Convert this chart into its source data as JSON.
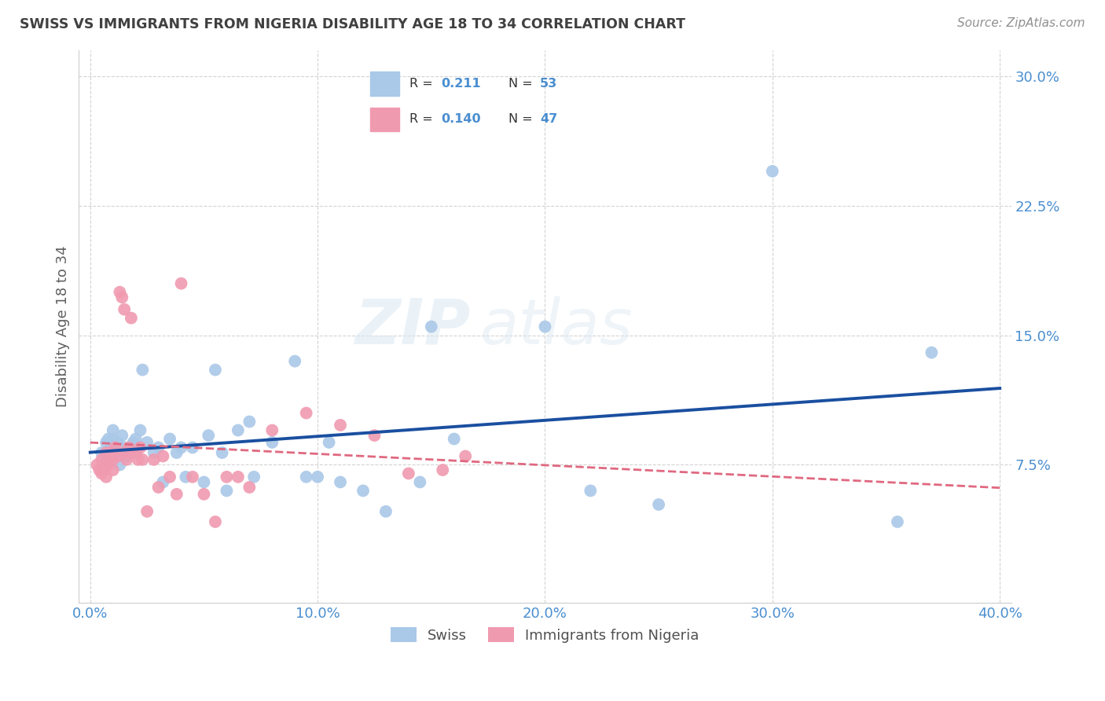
{
  "title": "SWISS VS IMMIGRANTS FROM NIGERIA DISABILITY AGE 18 TO 34 CORRELATION CHART",
  "source": "Source: ZipAtlas.com",
  "ylabel": "Disability Age 18 to 34",
  "xlim": [
    -0.005,
    0.405
  ],
  "ylim": [
    -0.005,
    0.315
  ],
  "xticks": [
    0.0,
    0.1,
    0.2,
    0.3,
    0.4
  ],
  "xtick_labels": [
    "0.0%",
    "10.0%",
    "20.0%",
    "30.0%",
    "40.0%"
  ],
  "yticks": [
    0.075,
    0.15,
    0.225,
    0.3
  ],
  "ytick_labels": [
    "7.5%",
    "15.0%",
    "22.5%",
    "30.0%"
  ],
  "swiss_x": [
    0.005,
    0.007,
    0.008,
    0.009,
    0.01,
    0.01,
    0.011,
    0.012,
    0.013,
    0.014,
    0.015,
    0.016,
    0.017,
    0.018,
    0.019,
    0.02,
    0.021,
    0.022,
    0.023,
    0.025,
    0.028,
    0.03,
    0.032,
    0.035,
    0.038,
    0.04,
    0.042,
    0.045,
    0.05,
    0.052,
    0.055,
    0.058,
    0.06,
    0.065,
    0.07,
    0.072,
    0.08,
    0.09,
    0.095,
    0.1,
    0.105,
    0.11,
    0.12,
    0.13,
    0.145,
    0.15,
    0.16,
    0.2,
    0.22,
    0.25,
    0.3,
    0.355,
    0.37
  ],
  "swiss_y": [
    0.082,
    0.088,
    0.09,
    0.085,
    0.09,
    0.095,
    0.082,
    0.088,
    0.075,
    0.092,
    0.085,
    0.08,
    0.085,
    0.082,
    0.088,
    0.09,
    0.085,
    0.095,
    0.13,
    0.088,
    0.082,
    0.085,
    0.065,
    0.09,
    0.082,
    0.085,
    0.068,
    0.085,
    0.065,
    0.092,
    0.13,
    0.082,
    0.06,
    0.095,
    0.1,
    0.068,
    0.088,
    0.135,
    0.068,
    0.068,
    0.088,
    0.065,
    0.06,
    0.048,
    0.065,
    0.155,
    0.09,
    0.155,
    0.06,
    0.052,
    0.245,
    0.042,
    0.14
  ],
  "nigeria_x": [
    0.003,
    0.004,
    0.005,
    0.005,
    0.006,
    0.006,
    0.007,
    0.007,
    0.008,
    0.008,
    0.009,
    0.01,
    0.01,
    0.011,
    0.012,
    0.013,
    0.014,
    0.015,
    0.015,
    0.016,
    0.017,
    0.018,
    0.018,
    0.02,
    0.021,
    0.022,
    0.023,
    0.025,
    0.028,
    0.03,
    0.032,
    0.035,
    0.038,
    0.04,
    0.045,
    0.05,
    0.055,
    0.06,
    0.065,
    0.07,
    0.08,
    0.095,
    0.11,
    0.125,
    0.14,
    0.155,
    0.165
  ],
  "nigeria_y": [
    0.075,
    0.072,
    0.078,
    0.07,
    0.075,
    0.072,
    0.082,
    0.068,
    0.078,
    0.075,
    0.082,
    0.078,
    0.072,
    0.085,
    0.08,
    0.175,
    0.172,
    0.165,
    0.082,
    0.078,
    0.085,
    0.082,
    0.16,
    0.082,
    0.078,
    0.085,
    0.078,
    0.048,
    0.078,
    0.062,
    0.08,
    0.068,
    0.058,
    0.18,
    0.068,
    0.058,
    0.042,
    0.068,
    0.068,
    0.062,
    0.095,
    0.105,
    0.098,
    0.092,
    0.07,
    0.072,
    0.08
  ],
  "swiss_color": "#aac8e8",
  "nigeria_color": "#f09ab0",
  "swiss_line_color": "#1a4fa0",
  "nigeria_line_color": "#e06880",
  "swiss_R": "0.211",
  "swiss_N": "53",
  "nigeria_R": "0.140",
  "nigeria_N": "47",
  "watermark": "ZIPatlas",
  "background_color": "#ffffff",
  "grid_color": "#c8c8c8",
  "title_color": "#404040",
  "axis_label_color": "#606060",
  "tick_label_color": "#4a8ed0",
  "legend_color": "#4a8ed0",
  "source_color": "#909090"
}
